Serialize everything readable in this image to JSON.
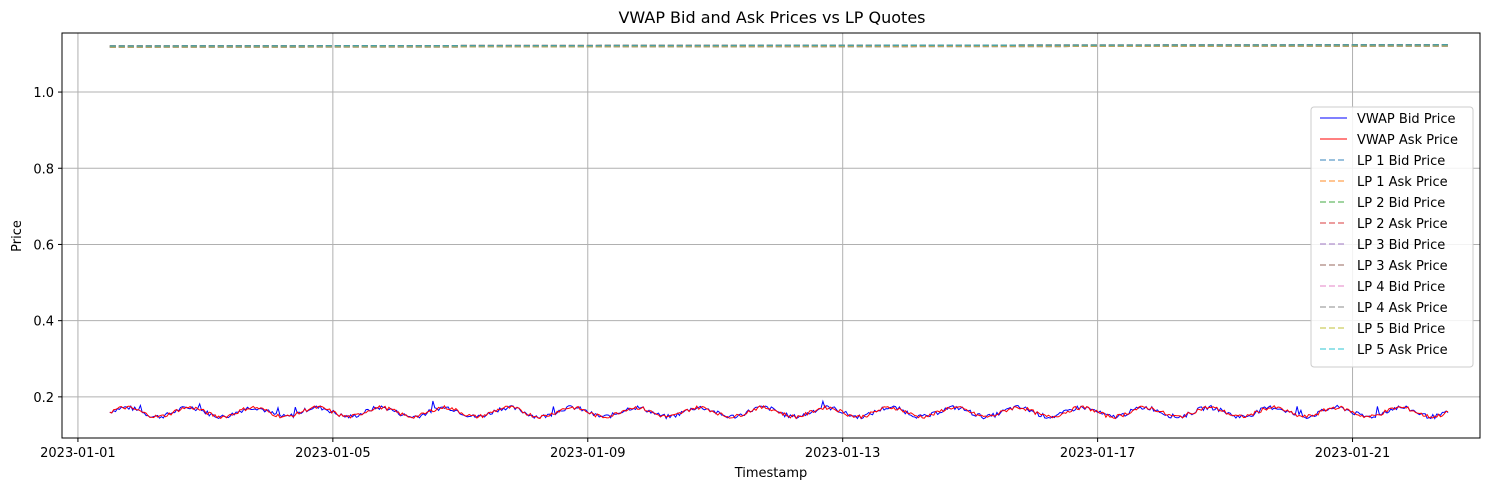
{
  "chart_data": {
    "type": "line",
    "title": "VWAP Bid and Ask Prices vs LP Quotes",
    "xlabel": "Timestamp",
    "ylabel": "Price",
    "xlim": [
      "2022-12-31 18:00",
      "2023-01-23 00:00"
    ],
    "ylim": [
      0.092,
      1.155
    ],
    "x_ticks": [
      "2023-01-01",
      "2023-01-05",
      "2023-01-09",
      "2023-01-13",
      "2023-01-17",
      "2023-01-21"
    ],
    "y_ticks": [
      "0.2",
      "0.4",
      "0.6",
      "0.8",
      "1.0"
    ],
    "grid": true,
    "legend_position": "center-right",
    "x_range": [
      "2023-01-01 12:00",
      "2023-01-22 12:00"
    ],
    "series": [
      {
        "name": "VWAP Bid Price",
        "color": "#0000ff",
        "style": "solid",
        "base": 0.16,
        "daily_amplitude": 0.012,
        "noise": 0.006
      },
      {
        "name": "VWAP Ask Price",
        "color": "#ff0000",
        "style": "solid",
        "base": 0.16,
        "daily_amplitude": 0.012,
        "noise": 0.005
      },
      {
        "name": "LP 1 Bid Price",
        "color": "#1f77b4",
        "style": "dashed",
        "values_start_end": [
          1.118,
          1.121
        ]
      },
      {
        "name": "LP 1 Ask Price",
        "color": "#ff7f0e",
        "style": "dashed",
        "values_start_end": [
          1.121,
          1.124
        ]
      },
      {
        "name": "LP 2 Bid Price",
        "color": "#2ca02c",
        "style": "dashed",
        "values_start_end": [
          1.118,
          1.121
        ]
      },
      {
        "name": "LP 2 Ask Price",
        "color": "#d62728",
        "style": "dashed",
        "values_start_end": [
          1.121,
          1.124
        ]
      },
      {
        "name": "LP 3 Bid Price",
        "color": "#9467bd",
        "style": "dashed",
        "values_start_end": [
          1.118,
          1.121
        ]
      },
      {
        "name": "LP 3 Ask Price",
        "color": "#8c564b",
        "style": "dashed",
        "values_start_end": [
          1.121,
          1.124
        ]
      },
      {
        "name": "LP 4 Bid Price",
        "color": "#e377c2",
        "style": "dashed",
        "values_start_end": [
          1.118,
          1.121
        ]
      },
      {
        "name": "LP 4 Ask Price",
        "color": "#7f7f7f",
        "style": "dashed",
        "values_start_end": [
          1.121,
          1.124
        ]
      },
      {
        "name": "LP 5 Bid Price",
        "color": "#bcbd22",
        "style": "dashed",
        "values_start_end": [
          1.118,
          1.121
        ]
      },
      {
        "name": "LP 5 Ask Price",
        "color": "#17becf",
        "style": "dashed",
        "values_start_end": [
          1.121,
          1.124
        ]
      }
    ]
  }
}
